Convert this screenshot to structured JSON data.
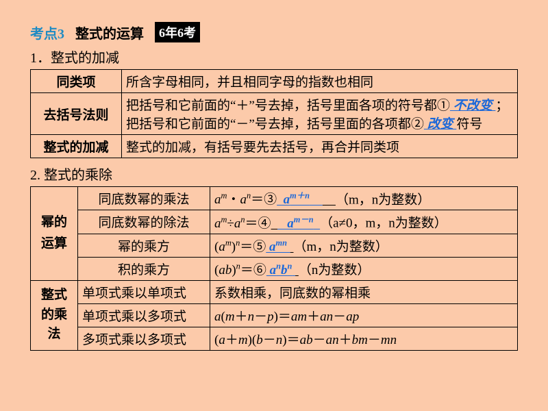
{
  "header": {
    "section_label": "考点3",
    "title": "整式的运算",
    "badge": "6年6考"
  },
  "section1": {
    "number": "1．整式的加减",
    "rows": [
      {
        "label": "同类项",
        "content": "所含字母相同，并且相同字母的指数也相同"
      },
      {
        "label": "去括号法则",
        "seg1": "把括号和它前面的“＋”号去掉，括号里面各项的符号都①",
        "ans1": " 不改变 ",
        "seg2": "；把括号和它前面的“－”号去掉，括号里面的各项都②",
        "ans2": " 改变 ",
        "seg3": "符号"
      },
      {
        "label": "整式的加减",
        "content": "整式的加减，有括号要先去括号，再合并同类项"
      }
    ]
  },
  "section2": {
    "number": "2. 整式的乘除",
    "group1_label": "幂的\n运算",
    "group2_label": "整式\n的乘\n法",
    "rows1": [
      {
        "name": "同底数幂的乘法",
        "lhs_html": "<span class='mi'>a</span><span class='sup'>m</span>・<span class='mi'>a</span><span class='sup'>n</span>＝③",
        "ans_html": "&nbsp;&nbsp;a<span class='sup'>m＋n</span>&nbsp;&nbsp;&nbsp;&nbsp;",
        "cond": "（m，n为整数）"
      },
      {
        "name": "同底数幂的除法",
        "lhs_html": "<span class='mi'>a</span><span class='sup'>m</span>÷<span class='mi'>a</span><span class='sup'>n</span>＝④",
        "ans_html": "&nbsp;&nbsp;&nbsp;a<span class='sup'>m－n</span>&nbsp;&nbsp;",
        "cond": "（a≠0，m，n为整数）"
      },
      {
        "name": "幂的乘方",
        "lhs_html": "(<span class='mi'>a</span><span class='sup'>m</span>)<span class='sup'>n</span>＝⑤",
        "ans_html": "&nbsp;a<span class='sup'>mn</span>&nbsp;",
        "cond": "（m，n为整数）"
      },
      {
        "name": "积的乘方",
        "lhs_html": "(<span class='mi'>ab</span>)<span class='sup'>n</span>＝⑥",
        "ans_html": "&nbsp;a<span class='sup'>n</span>b<span class='sup'>n</span>&nbsp;",
        "cond": "（n为整数）"
      }
    ],
    "rows2": [
      {
        "name": "单项式乘以单项式",
        "rhs_html": "系数相乘，同底数的幂相乘"
      },
      {
        "name": "单项式乘以多项式",
        "rhs_html": "<span class='mi'>a</span>(<span class='mi'>m</span>＋<span class='mi'>n</span>－<span class='mi'>p</span>)＝<span class='mi'>am</span>＋<span class='mi'>an</span>－<span class='mi'>ap</span>"
      },
      {
        "name": "多项式乘以多项式",
        "rhs_html": "(<span class='mi'>a</span>＋<span class='mi'>m</span>)(<span class='mi'>b</span>－<span class='mi'>n</span>)＝<span class='mi'>ab</span>－<span class='mi'>an</span>＋<span class='mi'>bm</span>－<span class='mi'>mn</span>"
      }
    ]
  }
}
